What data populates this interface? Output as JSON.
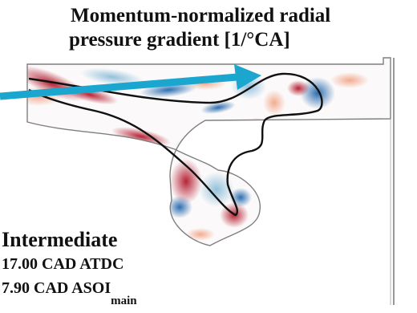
{
  "title": {
    "line1": "Momentum-normalized radial",
    "line2": "pressure gradient [1/°CA]"
  },
  "annotation": {
    "regime": "Intermediate",
    "crank_angle": "17.00 CAD ATDC",
    "injection_timing": "7.90 CAD ASOI",
    "injection_timing_subscript": "main"
  },
  "colors": {
    "arrow": "#1aa6cf",
    "positive": "#b2182b",
    "negative": "#2166ac",
    "contour": "#111111",
    "outline": "#7f7f7f"
  },
  "icons": [
    "pointer-arrow"
  ]
}
